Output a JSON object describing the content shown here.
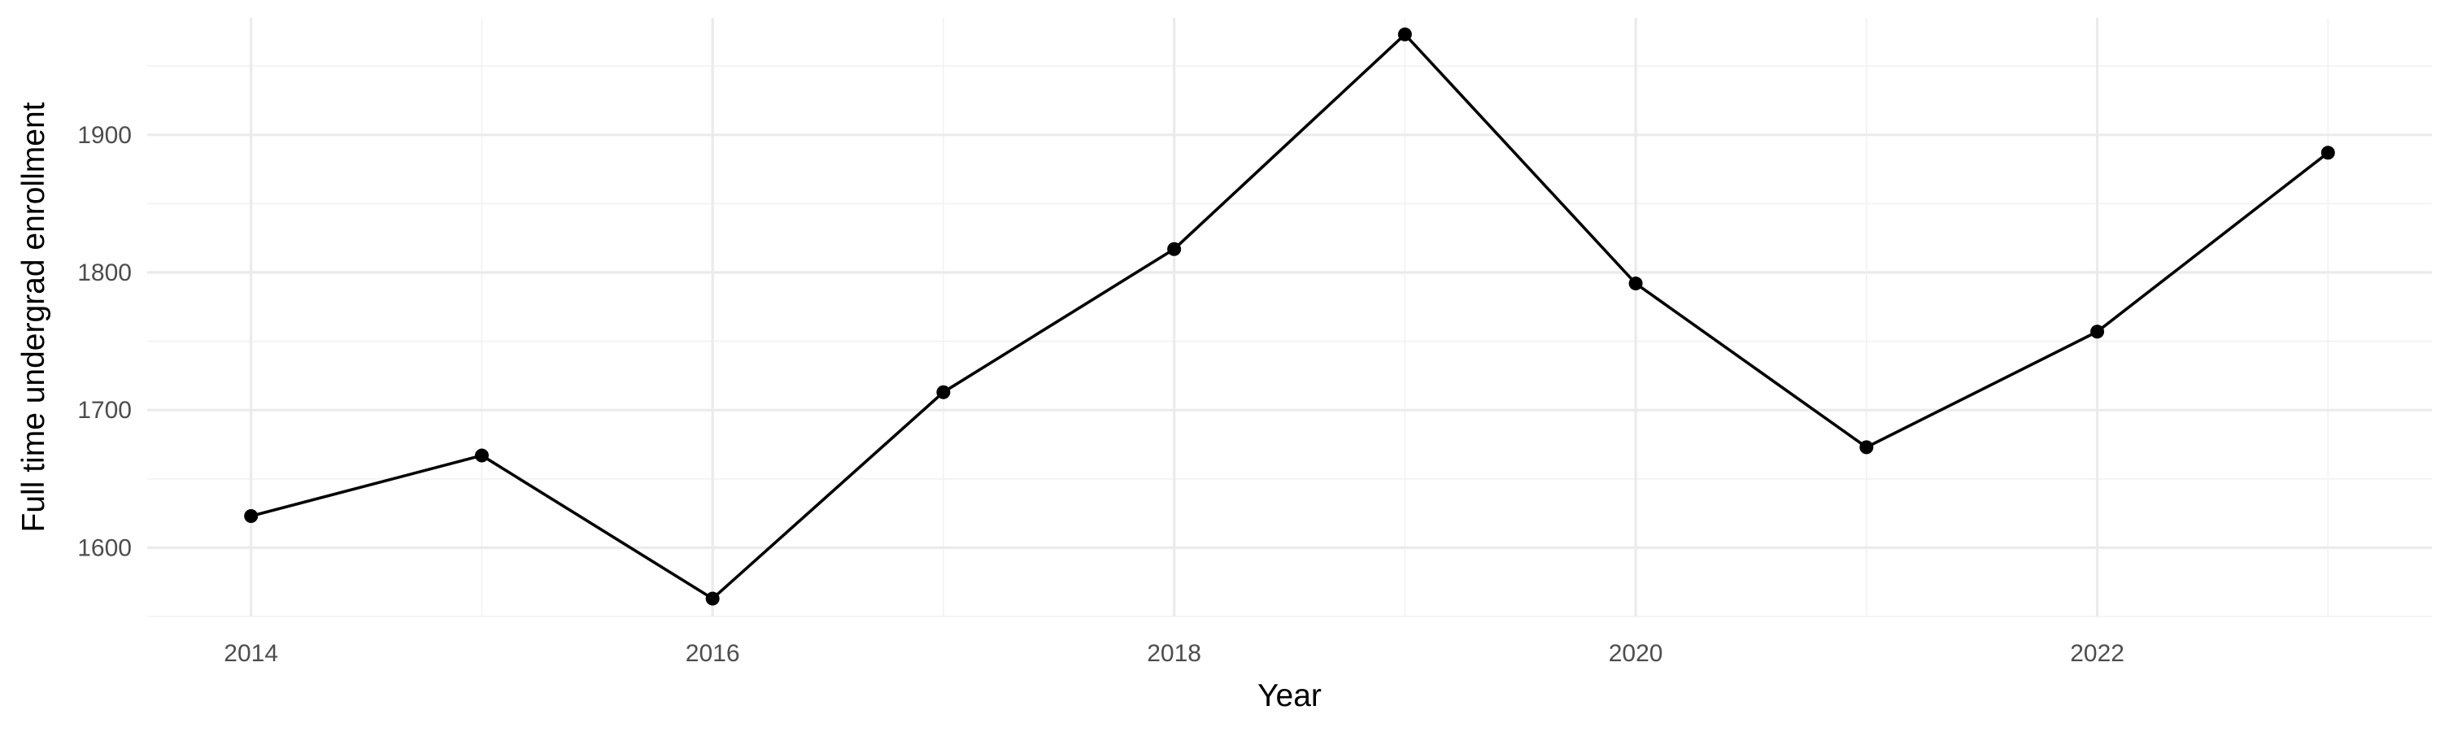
{
  "chart_data": {
    "type": "line",
    "title": "",
    "xlabel": "Year",
    "ylabel": "Full time undergrad enrollment",
    "x": [
      2014,
      2015,
      2016,
      2017,
      2018,
      2019,
      2020,
      2021,
      2022,
      2023
    ],
    "series": [
      {
        "values": [
          1623,
          1667,
          1563,
          1713,
          1817,
          1973,
          1792,
          1673,
          1757,
          1887
        ]
      }
    ],
    "xlim": [
      2013.55,
      2023.45
    ],
    "ylim": [
      1550,
      1985
    ],
    "x_major_ticks": [
      2014,
      2016,
      2018,
      2020,
      2022
    ],
    "x_minor_ticks": [
      2015,
      2017,
      2019,
      2021,
      2023
    ],
    "y_major_ticks": [
      1600,
      1700,
      1800,
      1900
    ],
    "y_minor_ticks": [
      1550,
      1650,
      1750,
      1850,
      1950
    ],
    "x_tick_labels": [
      "2014",
      "2016",
      "2018",
      "2020",
      "2022"
    ],
    "y_tick_labels": [
      "1600",
      "1700",
      "1800",
      "1900"
    ],
    "grid": true,
    "legend": "none",
    "line_color": "#000000",
    "point_color": "#000000",
    "grid_color": "#ebebeb"
  }
}
